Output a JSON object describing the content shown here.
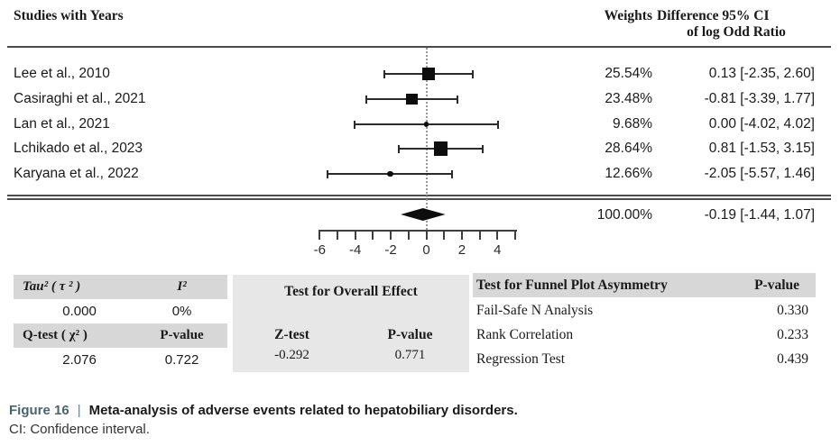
{
  "header": {
    "studies_label": "Studies with Years",
    "weights_label": "Weights",
    "diff_label_line1": "Difference 95% CI",
    "diff_label_line2": "of log Odd Ratio"
  },
  "chart_data": {
    "type": "forest",
    "effect_measure": "log Odd Ratio",
    "x_axis": {
      "min": -6,
      "max": 5,
      "tick_step": 1,
      "labeled_ticks": [
        -6,
        -4,
        -2,
        0,
        2,
        4
      ],
      "zero_line": 0
    },
    "studies": [
      {
        "study": "Lee et  al., 2010",
        "weight": "25.54%",
        "weight_pct": 25.54,
        "estimate": 0.13,
        "ci_low": -2.35,
        "ci_high": 2.6,
        "display": "0.13 [-2.35, 2.60]"
      },
      {
        "study": "Casiraghi et al., 2021",
        "weight": "23.48%",
        "weight_pct": 23.48,
        "estimate": -0.81,
        "ci_low": -3.39,
        "ci_high": 1.77,
        "display": "-0.81 [-3.39, 1.77]"
      },
      {
        "study": "Lan et al., 2021",
        "weight": "9.68%",
        "weight_pct": 9.68,
        "estimate": 0.0,
        "ci_low": -4.02,
        "ci_high": 4.02,
        "display": "0.00 [-4.02, 4.02]"
      },
      {
        "study": "Lchikado et al., 2023",
        "weight": "28.64%",
        "weight_pct": 28.64,
        "estimate": 0.81,
        "ci_low": -1.53,
        "ci_high": 3.15,
        "display": "0.81 [-1.53, 3.15]"
      },
      {
        "study": "Karyana et al., 2022",
        "weight": "12.66%",
        "weight_pct": 12.66,
        "estimate": -2.05,
        "ci_low": -5.57,
        "ci_high": 1.46,
        "display": "-2.05 [-5.57, 1.46]"
      }
    ],
    "summary": {
      "weight": "100.00%",
      "weight_pct": 100.0,
      "estimate": -0.19,
      "ci_low": -1.44,
      "ci_high": 1.07,
      "display": "-0.19 [-1.44, 1.07]"
    }
  },
  "stats": {
    "heterogeneity": {
      "header1_col1": "Tau² ( τ ² )",
      "header1_col2": "I²",
      "value1_col1": "0.000",
      "value1_col2": "0%",
      "header2_col1": "Q-test ( χ² )",
      "header2_col2": "P-value",
      "value2_col1": "2.076",
      "value2_col2": "0.722"
    },
    "overall_effect": {
      "title": "Test for Overall Effect",
      "col1_header": "Z-test",
      "col2_header": "P-value",
      "col1_value": "-0.292",
      "col2_value": "0.771"
    },
    "funnel": {
      "title": "Test for Funnel Plot Asymmetry",
      "pvalue_header": "P-value",
      "rows": [
        {
          "label": "Fail-Safe N Analysis",
          "value": "0.330"
        },
        {
          "label": "Rank Correlation",
          "value": "0.233"
        },
        {
          "label": "Regression Test",
          "value": "0.439"
        }
      ]
    }
  },
  "caption": {
    "label": "Figure 16",
    "separator": "|",
    "title": "Meta-analysis of adverse events related to hepatobiliary disorders.",
    "note": "CI: Confidence interval.",
    "label_color": "#4a636c",
    "separator_color": "#2e9c8e"
  }
}
